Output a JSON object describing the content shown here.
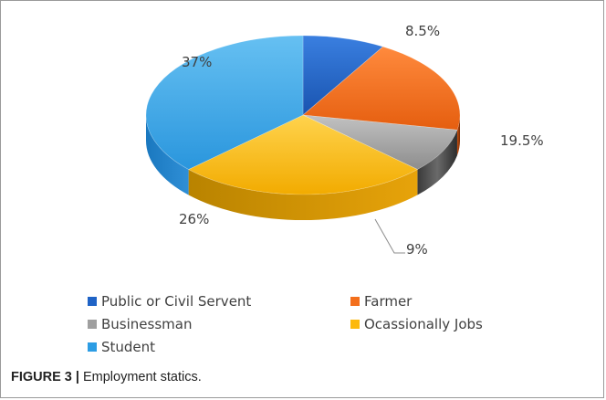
{
  "chart_data": {
    "type": "pie",
    "style": "3d",
    "categories": [
      "Public or Civil Servent",
      "Farmer",
      "Businessman",
      "Ocassionally Jobs",
      "Student"
    ],
    "values": [
      8.5,
      19.5,
      9,
      26,
      37
    ],
    "data_labels": [
      "8.5%",
      "19.5%",
      "9%",
      "26%",
      "37%"
    ],
    "colors": [
      "#1f63c6",
      "#f36f1c",
      "#9f9f9f",
      "#fdb90c",
      "#2c9de4"
    ],
    "legend_position": "bottom"
  },
  "caption": {
    "figure_label": "FIGURE 3 |",
    "text": " Employment statics."
  }
}
